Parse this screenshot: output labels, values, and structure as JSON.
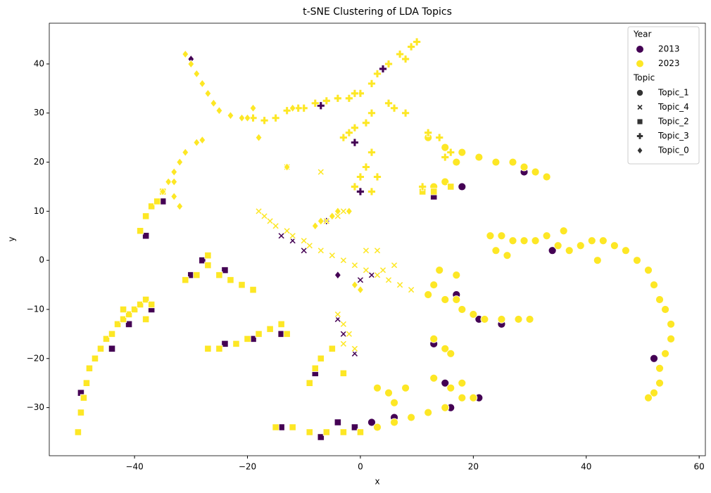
{
  "chart_data": {
    "type": "scatter",
    "title": "t-SNE Clustering of LDA Topics",
    "xlabel": "x",
    "ylabel": "y",
    "xlim": [
      -55.1,
      61.1
    ],
    "ylim": [
      -39.8,
      48.3
    ],
    "xticks": [
      {
        "value": -40,
        "label": "−40"
      },
      {
        "value": -20,
        "label": "−20"
      },
      0,
      20,
      40,
      60
    ],
    "yticks": [
      {
        "value": -30,
        "label": "−30"
      },
      {
        "value": -20,
        "label": "−20"
      },
      {
        "value": -10,
        "label": "−10"
      },
      0,
      10,
      20,
      30,
      40
    ],
    "legend": {
      "position": "upper right",
      "groups": [
        {
          "title": "Year",
          "entries": [
            {
              "name": "2013",
              "color": "#440154"
            },
            {
              "name": "2023",
              "color": "#fde725"
            }
          ]
        },
        {
          "title": "Topic",
          "entries": [
            {
              "name": "Topic_1",
              "marker": "circle"
            },
            {
              "name": "Topic_4",
              "marker": "x"
            },
            {
              "name": "Topic_2",
              "marker": "square"
            },
            {
              "name": "Topic_3",
              "marker": "plus"
            },
            {
              "name": "Topic_0",
              "marker": "diamond"
            }
          ]
        }
      ]
    },
    "series": [
      {
        "year": "2013",
        "topic": "Topic_1",
        "x": [
          25,
          29,
          33,
          21,
          17,
          16,
          21,
          6,
          2,
          15,
          52,
          34,
          18,
          13
        ],
        "y": [
          -13,
          18,
          17,
          -12,
          -7,
          -30,
          -28,
          -32,
          -33,
          -25,
          -20,
          2,
          15,
          -17
        ]
      },
      {
        "year": "2013",
        "topic": "Topic_4",
        "x": [
          -14,
          -12,
          -16,
          -4,
          -1,
          0,
          2,
          -10,
          -3
        ],
        "y": [
          5,
          4,
          8,
          -12,
          -19,
          -4,
          -3,
          2,
          -15
        ]
      },
      {
        "year": "2013",
        "topic": "Topic_2",
        "x": [
          -49.5,
          -44,
          -41,
          -37,
          -38,
          -35,
          -28,
          -30,
          -24,
          -24,
          -19,
          -14,
          -7,
          -4,
          -1,
          -8,
          13,
          -14
        ],
        "y": [
          -27,
          -18,
          -13,
          -10,
          5,
          12,
          0,
          -3,
          -2,
          -17,
          -16,
          -34,
          -36,
          -33,
          -34,
          -23,
          13,
          -15
        ]
      },
      {
        "year": "2013",
        "topic": "Topic_3",
        "x": [
          4,
          -7,
          -1,
          0
        ],
        "y": [
          39,
          31.5,
          24,
          14
        ]
      },
      {
        "year": "2013",
        "topic": "Topic_0",
        "x": [
          -12,
          -30,
          -6,
          -4
        ],
        "y": [
          31,
          41,
          8,
          -3
        ]
      },
      {
        "year": "2023",
        "topic": "Topic_1",
        "x": [
          25,
          27,
          29,
          31,
          33,
          35,
          37,
          39,
          41,
          43,
          45,
          47,
          49,
          51,
          52,
          53,
          54,
          55,
          55,
          54,
          53,
          53,
          52,
          51,
          36,
          23,
          24,
          26,
          42,
          12,
          15,
          18,
          21,
          24,
          27,
          29,
          31,
          33,
          17,
          13,
          15,
          12,
          15,
          18,
          20,
          22,
          25,
          28,
          30,
          14,
          17,
          13,
          17,
          13,
          15,
          16,
          3,
          6,
          9,
          12,
          15,
          18,
          20,
          3,
          5,
          8,
          6,
          13,
          16,
          18
        ],
        "y": [
          5,
          4,
          4,
          4,
          5,
          3,
          2,
          3,
          4,
          4,
          3,
          2,
          0,
          -2,
          -5,
          -8,
          -10,
          -13,
          -16,
          -19,
          -22,
          -25,
          -27,
          -28,
          6,
          5,
          2,
          1,
          0,
          25,
          23,
          22,
          21,
          20,
          20,
          19,
          18,
          17,
          20,
          15,
          16,
          -7,
          -8,
          -10,
          -11,
          -12,
          -12,
          -12,
          -12,
          -2,
          -3,
          -5,
          -8,
          -16,
          -18,
          -19,
          -34,
          -33,
          -32,
          -31,
          -30,
          -28,
          -28,
          -26,
          -27,
          -26,
          -29,
          -24,
          -26,
          -25
        ]
      },
      {
        "year": "2023",
        "topic": "Topic_4",
        "x": [
          -18,
          -17,
          -16,
          -15,
          -13,
          -12,
          -10,
          -9,
          -7,
          -5,
          -3,
          -1,
          1,
          3,
          5,
          7,
          9,
          4,
          6,
          -4,
          -3,
          -2,
          -3,
          -1,
          -7,
          -6,
          -4,
          -3,
          1,
          3,
          -13,
          -7
        ],
        "y": [
          10,
          9,
          8,
          7,
          6,
          5,
          4,
          3,
          2,
          1,
          0,
          -1,
          -2,
          -3,
          -4,
          -5,
          -6,
          -2,
          -1,
          -11,
          -13,
          -15,
          -17,
          -18,
          2,
          8,
          9,
          10,
          2,
          2,
          19,
          18
        ]
      },
      {
        "year": "2023",
        "topic": "Topic_2",
        "x": [
          -50,
          -49.5,
          -49,
          -48.5,
          -48,
          -47,
          -46,
          -45,
          -44,
          -43,
          -42,
          -41,
          -40,
          -39,
          -38,
          -37,
          -42,
          -38,
          -39,
          -38,
          -37,
          -36,
          -35,
          -31,
          -29,
          -27,
          -25,
          -23,
          -21,
          -19,
          -27,
          -27,
          -25,
          -22,
          -20,
          -18,
          -16,
          -14,
          -15,
          -12,
          -9,
          -6,
          -3,
          0,
          -9,
          -8,
          -7,
          -5,
          -3,
          11,
          13,
          16,
          -13
        ],
        "y": [
          -35,
          -31,
          -28,
          -25,
          -22,
          -20,
          -18,
          -16,
          -15,
          -13,
          -12,
          -11,
          -10,
          -9,
          -8,
          -9,
          -10,
          -12,
          6,
          9,
          11,
          12,
          14,
          -4,
          -3,
          -1,
          -3,
          -4,
          -5,
          -6,
          1,
          -18,
          -18,
          -17,
          -16,
          -15,
          -14,
          -13,
          -34,
          -34,
          -35,
          -35,
          -35,
          -35,
          -25,
          -22,
          -20,
          -18,
          -23,
          14,
          14,
          15,
          -15
        ]
      },
      {
        "year": "2023",
        "topic": "Topic_3",
        "x": [
          0,
          2,
          3,
          5,
          7,
          9,
          10,
          8,
          -10,
          -8,
          -6,
          -4,
          -2,
          -1,
          -19,
          -17,
          -15,
          -13,
          -11,
          5,
          6,
          8,
          -3,
          -2,
          -1,
          1,
          2,
          1,
          0,
          -1,
          2,
          3,
          12,
          14,
          16,
          15,
          11,
          2
        ],
        "y": [
          34,
          36,
          38,
          40,
          42,
          43.5,
          44.5,
          41,
          31,
          32,
          32.5,
          33,
          33,
          34,
          29,
          28.5,
          29,
          30.5,
          31,
          32,
          31,
          30,
          25,
          26,
          27,
          28,
          22,
          19,
          17,
          15,
          14,
          17,
          26,
          25,
          22,
          21,
          15,
          30
        ]
      },
      {
        "year": "2023",
        "topic": "Topic_0",
        "x": [
          -31,
          -30,
          -29,
          -28,
          -27,
          -26,
          -25,
          -23,
          -21,
          -20,
          -19,
          -35,
          -34,
          -33,
          -32,
          -31,
          -29,
          -28,
          -33,
          -32,
          -8,
          -7,
          -5,
          -4,
          -2,
          -12,
          -18,
          -13,
          -33,
          -1,
          0
        ],
        "y": [
          42,
          40,
          38,
          36,
          34,
          32,
          30.5,
          29.5,
          29,
          29,
          31,
          14,
          16,
          18,
          20,
          22,
          24,
          24.5,
          13,
          11,
          7,
          8,
          9,
          10,
          10,
          31,
          25,
          19,
          16,
          -5,
          -6
        ]
      }
    ]
  }
}
